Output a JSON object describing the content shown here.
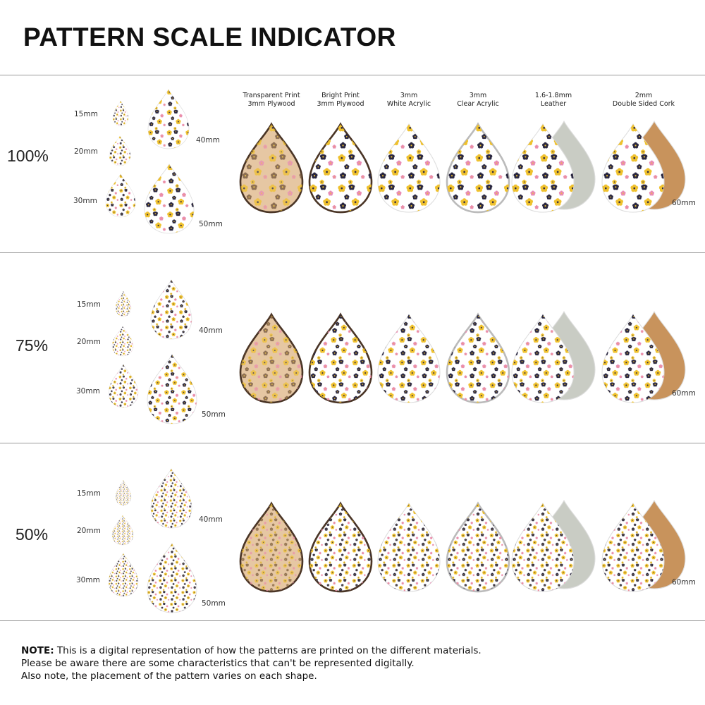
{
  "title": "PATTERN SCALE INDICATOR",
  "sections": [
    {
      "scale": "100%"
    },
    {
      "scale": "75%"
    },
    {
      "scale": "50%"
    }
  ],
  "sizes": [
    "15mm",
    "20mm",
    "30mm",
    "40mm",
    "50mm"
  ],
  "materials": [
    {
      "line1": "Transparent Print",
      "line2": "3mm Plywood",
      "face": "#e6c7a3",
      "back": null
    },
    {
      "line1": "Bright Print",
      "line2": "3mm Plywood",
      "face": "#ffffff",
      "back": null
    },
    {
      "line1": "3mm",
      "line2": "White Acrylic",
      "face": "#ffffff",
      "back": null
    },
    {
      "line1": "3mm",
      "line2": "Clear Acrylic",
      "face": "#ffffff",
      "back": null
    },
    {
      "line1": "1.6-1.8mm",
      "line2": "Leather",
      "face": "#ffffff",
      "back": "#c9ccc4"
    },
    {
      "line1": "2mm",
      "line2": "Double Sided Cork",
      "face": "#ffffff",
      "back": "#c8935c"
    }
  ],
  "material_size": "60mm",
  "pattern_colors": {
    "yellow": "#efc12e",
    "navy": "#2a2740",
    "pink": "#e98bb5"
  },
  "note": {
    "label": "NOTE:",
    "line1": "This is a digital representation of how the patterns are printed on the different materials.",
    "line2": "Please be aware there are some characteristics that can't be represented digitally.",
    "line3": "Also note, the placement of the pattern varies on each shape."
  }
}
